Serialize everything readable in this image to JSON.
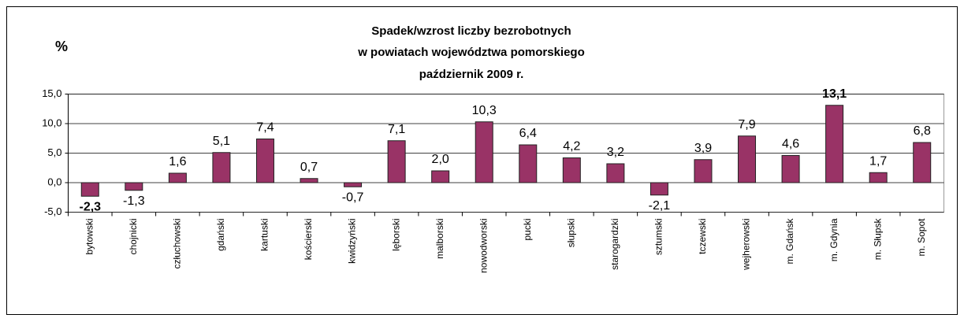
{
  "chart_data": {
    "type": "bar",
    "title": [
      "Spadek/wzrost liczby bezrobotnych",
      "w powiatach województwa pomorskiego",
      "październik 2009 r."
    ],
    "y_label": "%",
    "categories": [
      "bytowski",
      "chojnicki",
      "człuchowski",
      "gdański",
      "kartuski",
      "kościerski",
      "kwidzyński",
      "lęborski",
      "malborski",
      "nowodworski",
      "pucki",
      "słupski",
      "starogardzki",
      "sztumski",
      "tczewski",
      "wejherowski",
      "m. Gdańsk",
      "m. Gdynia",
      "m. Słupsk",
      "m. Sopot"
    ],
    "values": [
      -2.3,
      -1.3,
      1.6,
      5.1,
      7.4,
      0.7,
      -0.7,
      7.1,
      2.0,
      10.3,
      6.4,
      4.2,
      3.2,
      -2.1,
      3.9,
      7.9,
      4.6,
      13.1,
      1.7,
      6.8
    ],
    "value_labels": [
      "-2,3",
      "-1,3",
      "1,6",
      "5,1",
      "7,4",
      "0,7",
      "-0,7",
      "7,1",
      "2,0",
      "10,3",
      "6,4",
      "4,2",
      "3,2",
      "-2,1",
      "3,9",
      "7,9",
      "4,6",
      "13,1",
      "1,7",
      "6,8"
    ],
    "color": "#993366",
    "ylim": [
      -5,
      15
    ],
    "yticks": [
      {
        "value": -5,
        "label": "-5,0"
      },
      {
        "value": 0,
        "label": "0,0"
      },
      {
        "value": 5,
        "label": "5,0"
      },
      {
        "value": 10,
        "label": "10,0"
      },
      {
        "value": 15,
        "label": "15,0"
      }
    ],
    "grid": true
  }
}
